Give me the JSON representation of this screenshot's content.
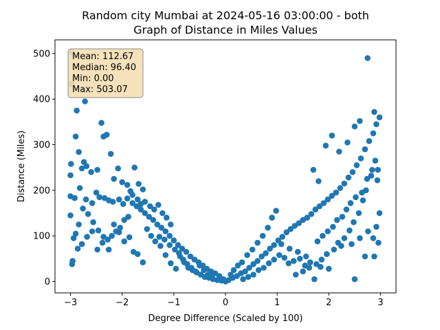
{
  "chart_data": {
    "type": "scatter",
    "title_line1": "Random city Mumbai at 2024-05-16 03:00:00  - both",
    "title_line2": "Graph of Distance in Miles Values",
    "xlabel": "Degree Difference (Scaled by 100)",
    "ylabel": "Distance (Miles)",
    "xlim": [
      -3.3,
      3.3
    ],
    "ylim": [
      -25,
      530
    ],
    "xticks": [
      -3,
      -2,
      -1,
      0,
      1,
      2,
      3
    ],
    "yticks": [
      0,
      100,
      200,
      300,
      400,
      500
    ],
    "grid": false,
    "point_color": "#1f77b4",
    "stats": {
      "mean": "Mean: 112.67",
      "median": "Median: 96.40",
      "min": "Min: 0.00",
      "max": "Max: 503.07",
      "box_fill": "#f5deb3",
      "placement": "top-left"
    },
    "series": [
      {
        "values": [
          [
            -2.98,
            503
          ],
          [
            -2.98,
            433
          ],
          [
            -2.88,
            375
          ],
          [
            -2.72,
            395
          ],
          [
            -2.9,
            318
          ],
          [
            -2.84,
            284
          ],
          [
            -2.99,
            258
          ],
          [
            -2.74,
            262
          ],
          [
            -2.69,
            253
          ],
          [
            -2.78,
            248
          ],
          [
            -2.6,
            240
          ],
          [
            -2.48,
            245
          ],
          [
            -2.4,
            348
          ],
          [
            -2.36,
            318
          ],
          [
            -2.3,
            322
          ],
          [
            -2.22,
            280
          ],
          [
            -2.16,
            225
          ],
          [
            -2.08,
            248
          ],
          [
            -2.0,
            218
          ],
          [
            -1.9,
            212
          ],
          [
            -1.84,
            198
          ],
          [
            -1.76,
            250
          ],
          [
            -1.68,
            214
          ],
          [
            -1.6,
            202
          ],
          [
            -3.0,
            233
          ],
          [
            -3.0,
            187
          ],
          [
            -2.92,
            183
          ],
          [
            -2.82,
            205
          ],
          [
            -2.7,
            180
          ],
          [
            -2.58,
            172
          ],
          [
            -2.5,
            195
          ],
          [
            -2.44,
            185
          ],
          [
            -2.34,
            183
          ],
          [
            -2.26,
            178
          ],
          [
            -2.18,
            175
          ],
          [
            -2.06,
            180
          ],
          [
            -1.98,
            170
          ],
          [
            -1.9,
            182
          ],
          [
            -1.8,
            190
          ],
          [
            -1.7,
            180
          ],
          [
            -1.64,
            170
          ],
          [
            -1.56,
            175
          ],
          [
            -1.46,
            165
          ],
          [
            -1.38,
            158
          ],
          [
            -1.3,
            168
          ],
          [
            -1.22,
            150
          ],
          [
            -1.14,
            140
          ],
          [
            -1.06,
            125
          ],
          [
            -3.0,
            145
          ],
          [
            -2.94,
            95
          ],
          [
            -2.96,
            45
          ],
          [
            -2.97,
            38
          ],
          [
            -2.9,
            105
          ],
          [
            -2.84,
            125
          ],
          [
            -2.76,
            160
          ],
          [
            -2.66,
            148
          ],
          [
            -2.56,
            130
          ],
          [
            -2.46,
            112
          ],
          [
            -2.36,
            98
          ],
          [
            -2.26,
            70
          ],
          [
            -2.16,
            125
          ],
          [
            -2.06,
            108
          ],
          [
            -1.96,
            88
          ],
          [
            -1.86,
            97
          ],
          [
            -1.78,
            65
          ],
          [
            -1.7,
            60
          ],
          [
            -1.6,
            42
          ],
          [
            -1.52,
            115
          ],
          [
            -1.44,
            100
          ],
          [
            -1.36,
            88
          ],
          [
            -1.26,
            78
          ],
          [
            -1.16,
            58
          ],
          [
            -1.06,
            40
          ],
          [
            -0.96,
            28
          ],
          [
            -0.88,
            55
          ],
          [
            -0.8,
            42
          ],
          [
            -0.72,
            30
          ],
          [
            -0.64,
            25
          ],
          [
            -0.56,
            20
          ],
          [
            -0.48,
            15
          ],
          [
            -0.4,
            10
          ],
          [
            -0.32,
            8
          ],
          [
            -0.24,
            5
          ],
          [
            -0.16,
            3
          ],
          [
            -0.08,
            2
          ],
          [
            0.0,
            0
          ],
          [
            0.06,
            3
          ],
          [
            0.14,
            8
          ],
          [
            0.22,
            12
          ],
          [
            0.3,
            18
          ],
          [
            0.38,
            22
          ],
          [
            0.46,
            30
          ],
          [
            0.54,
            38
          ],
          [
            0.62,
            45
          ],
          [
            0.7,
            55
          ],
          [
            0.78,
            62
          ],
          [
            0.86,
            72
          ],
          [
            0.94,
            80
          ],
          [
            1.02,
            90
          ],
          [
            1.1,
            98
          ],
          [
            1.18,
            108
          ],
          [
            1.26,
            115
          ],
          [
            1.34,
            122
          ],
          [
            1.42,
            128
          ],
          [
            1.5,
            135
          ],
          [
            1.58,
            140
          ],
          [
            1.66,
            148
          ],
          [
            1.74,
            158
          ],
          [
            1.82,
            165
          ],
          [
            1.9,
            172
          ],
          [
            1.98,
            180
          ],
          [
            2.06,
            188
          ],
          [
            2.14,
            195
          ],
          [
            2.22,
            205
          ],
          [
            2.3,
            215
          ],
          [
            2.38,
            228
          ],
          [
            2.46,
            240
          ],
          [
            2.54,
            255
          ],
          [
            2.62,
            270
          ],
          [
            2.7,
            290
          ],
          [
            2.78,
            308
          ],
          [
            2.86,
            325
          ],
          [
            2.92,
            345
          ],
          [
            2.98,
            360
          ],
          [
            2.75,
            490
          ],
          [
            2.88,
            372
          ],
          [
            2.6,
            352
          ],
          [
            2.5,
            340
          ],
          [
            2.36,
            305
          ],
          [
            2.2,
            285
          ],
          [
            2.06,
            320
          ],
          [
            1.94,
            298
          ],
          [
            1.8,
            220
          ],
          [
            1.7,
            245
          ],
          [
            2.9,
            265
          ],
          [
            2.95,
            245
          ],
          [
            2.82,
            232
          ],
          [
            2.72,
            200
          ],
          [
            2.66,
            178
          ],
          [
            2.58,
            150
          ],
          [
            2.48,
            130
          ],
          [
            2.4,
            112
          ],
          [
            2.3,
            95
          ],
          [
            2.18,
            85
          ],
          [
            2.1,
            70
          ],
          [
            1.96,
            60
          ],
          [
            1.86,
            48
          ],
          [
            1.76,
            38
          ],
          [
            1.62,
            30
          ],
          [
            1.5,
            22
          ],
          [
            1.36,
            15
          ],
          [
            1.72,
            5
          ],
          [
            2.5,
            5
          ],
          [
            2.7,
            55
          ],
          [
            2.88,
            55
          ],
          [
            2.96,
            85
          ],
          [
            2.92,
            120
          ],
          [
            2.98,
            150
          ],
          [
            2.86,
            95
          ],
          [
            2.76,
            110
          ],
          [
            2.6,
            95
          ],
          [
            2.44,
            82
          ],
          [
            2.24,
            78
          ],
          [
            2.0,
            28
          ],
          [
            1.84,
            32
          ],
          [
            1.56,
            55
          ],
          [
            1.4,
            65
          ],
          [
            1.24,
            72
          ],
          [
            1.08,
            82
          ],
          [
            0.98,
            155
          ],
          [
            0.9,
            140
          ],
          [
            0.82,
            118
          ],
          [
            0.72,
            100
          ],
          [
            0.62,
            85
          ],
          [
            0.52,
            70
          ],
          [
            0.42,
            58
          ],
          [
            0.32,
            42
          ],
          [
            0.24,
            35
          ],
          [
            0.16,
            25
          ],
          [
            0.1,
            15
          ],
          [
            -0.04,
            5
          ],
          [
            -0.12,
            12
          ],
          [
            -0.2,
            18
          ],
          [
            -0.28,
            22
          ],
          [
            -0.36,
            28
          ],
          [
            -0.44,
            35
          ],
          [
            -0.52,
            42
          ],
          [
            -0.6,
            48
          ],
          [
            -0.68,
            55
          ],
          [
            -0.76,
            65
          ],
          [
            -0.84,
            72
          ],
          [
            -0.92,
            80
          ],
          [
            -1.0,
            90
          ],
          [
            -1.08,
            100
          ],
          [
            -1.16,
            110
          ],
          [
            -1.24,
            118
          ],
          [
            -1.32,
            125
          ],
          [
            -1.4,
            135
          ],
          [
            -1.48,
            142
          ],
          [
            -1.56,
            150
          ],
          [
            -1.64,
            158
          ],
          [
            -1.72,
            165
          ],
          [
            -1.8,
            172
          ],
          [
            -1.88,
            142
          ],
          [
            -1.96,
            135
          ],
          [
            -2.04,
            118
          ],
          [
            -2.12,
            110
          ],
          [
            -2.2,
            100
          ],
          [
            -2.28,
            92
          ],
          [
            -2.38,
            85
          ],
          [
            -2.48,
            70
          ],
          [
            -2.58,
            110
          ],
          [
            -2.68,
            98
          ],
          [
            -2.78,
            82
          ],
          [
            -2.86,
            72
          ],
          [
            -1.28,
            98
          ],
          [
            -1.18,
            92
          ],
          [
            -1.08,
            80
          ],
          [
            -0.98,
            70
          ],
          [
            -0.9,
            62
          ],
          [
            -0.82,
            48
          ],
          [
            -0.74,
            38
          ],
          [
            -0.66,
            30
          ],
          [
            -0.58,
            22
          ],
          [
            -0.5,
            35
          ],
          [
            -0.42,
            25
          ],
          [
            -0.34,
            15
          ],
          [
            -0.26,
            10
          ],
          [
            0.34,
            5
          ],
          [
            0.44,
            10
          ],
          [
            0.54,
            15
          ],
          [
            0.64,
            25
          ],
          [
            0.74,
            30
          ],
          [
            0.84,
            40
          ],
          [
            0.94,
            48
          ],
          [
            1.04,
            58
          ],
          [
            1.14,
            52
          ],
          [
            1.22,
            40
          ],
          [
            1.32,
            45
          ],
          [
            1.44,
            50
          ],
          [
            1.54,
            35
          ],
          [
            1.64,
            42
          ],
          [
            1.78,
            88
          ],
          [
            1.88,
            100
          ],
          [
            1.98,
            110
          ],
          [
            2.08,
            120
          ],
          [
            2.16,
            135
          ],
          [
            2.26,
            142
          ],
          [
            2.34,
            158
          ],
          [
            2.42,
            172
          ],
          [
            2.52,
            185
          ],
          [
            2.64,
            195
          ],
          [
            2.74,
            225
          ],
          [
            2.84,
            245
          ],
          [
            2.94,
            222
          ]
        ]
      }
    ]
  }
}
